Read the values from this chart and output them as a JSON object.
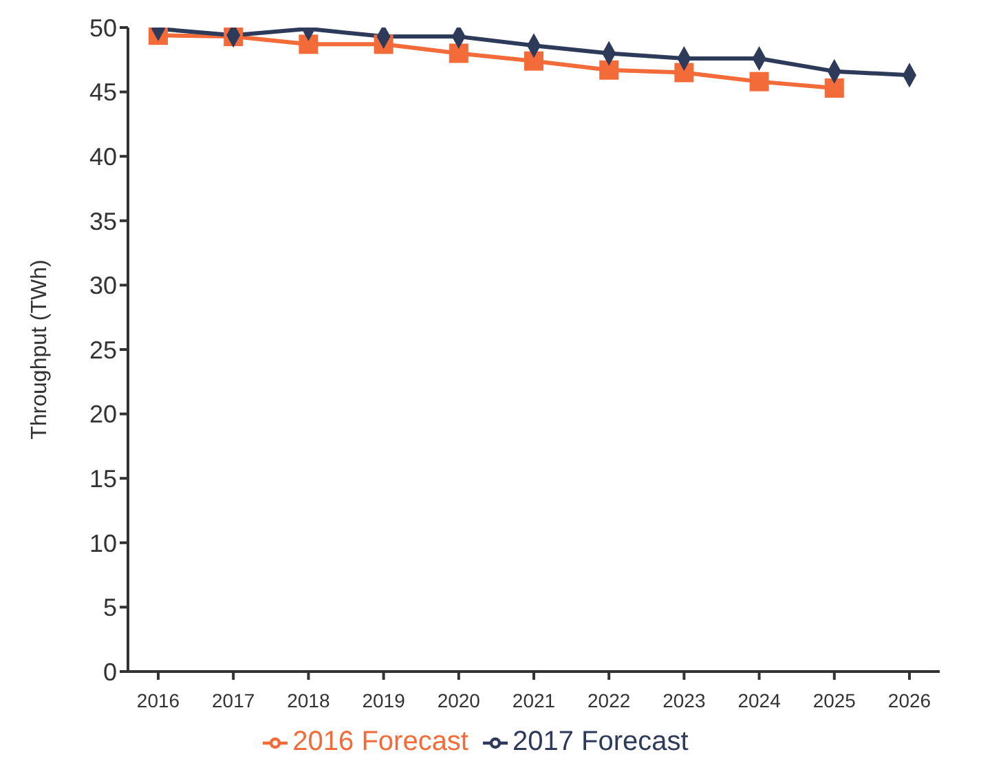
{
  "chart_data": {
    "type": "line",
    "ylabel": "Throughput (TWh)",
    "categories": [
      "2016",
      "2017",
      "2018",
      "2019",
      "2020",
      "2021",
      "2022",
      "2023",
      "2024",
      "2025",
      "2026"
    ],
    "series": [
      {
        "name": "2016 Forecast",
        "color": "#f26b38",
        "marker": "square",
        "values": [
          49.4,
          49.3,
          48.7,
          48.7,
          48.0,
          47.4,
          46.7,
          46.5,
          45.8,
          45.3,
          null
        ]
      },
      {
        "name": "2017 Forecast",
        "color": "#2e3a59",
        "marker": "diamond",
        "values": [
          49.9,
          49.4,
          49.9,
          49.3,
          49.3,
          48.6,
          48.0,
          47.6,
          47.6,
          46.6,
          46.3
        ]
      }
    ],
    "ylim": [
      0,
      50
    ],
    "yticks": [
      0,
      5,
      10,
      15,
      20,
      25,
      30,
      35,
      40,
      45,
      50
    ],
    "grid": false,
    "legend": "bottom"
  }
}
